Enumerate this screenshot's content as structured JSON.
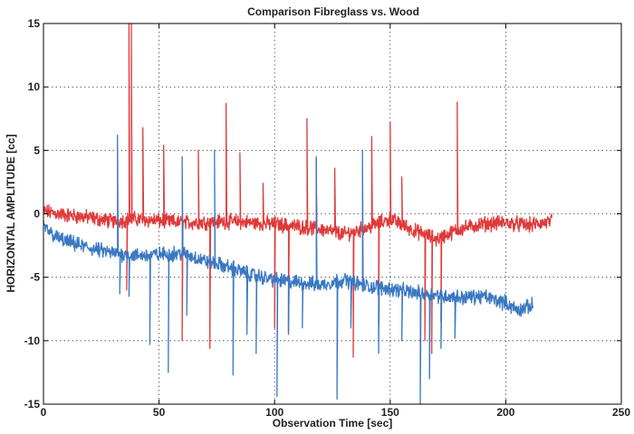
{
  "chart_data": {
    "type": "line",
    "title": "Comparison Fibreglass vs. Wood",
    "xlabel": "Observation Time [sec]",
    "ylabel": "HORIZONTAL AMPLITUDE [cc]",
    "xlim": [
      0,
      250
    ],
    "ylim": [
      -15,
      15
    ],
    "xticks": [
      0,
      50,
      100,
      150,
      200,
      250
    ],
    "yticks": [
      -15,
      -10,
      -5,
      0,
      5,
      10,
      15
    ],
    "grid": true,
    "series": [
      {
        "color": "#e03a3a",
        "baseline": [
          [
            0,
            0.2
          ],
          [
            10,
            -0.1
          ],
          [
            20,
            -0.3
          ],
          [
            30,
            -0.6
          ],
          [
            40,
            -0.4
          ],
          [
            60,
            -0.7
          ],
          [
            80,
            -0.6
          ],
          [
            100,
            -0.8
          ],
          [
            120,
            -1.2
          ],
          [
            130,
            -1.6
          ],
          [
            140,
            -1.1
          ],
          [
            150,
            -0.4
          ],
          [
            160,
            -1.3
          ],
          [
            170,
            -2.0
          ],
          [
            180,
            -1.2
          ],
          [
            190,
            -0.8
          ],
          [
            200,
            -0.7
          ],
          [
            210,
            -0.9
          ],
          [
            220,
            -0.6
          ]
        ],
        "spikes": [
          [
            37,
            15
          ],
          [
            38,
            15
          ],
          [
            36,
            -6
          ],
          [
            43,
            6.8
          ],
          [
            52,
            5.4
          ],
          [
            60,
            -10
          ],
          [
            67,
            5
          ],
          [
            72,
            -10.6
          ],
          [
            79,
            8.7
          ],
          [
            85,
            4.8
          ],
          [
            95,
            2.4
          ],
          [
            100,
            -9
          ],
          [
            106,
            -9.5
          ],
          [
            114,
            7.5
          ],
          [
            118,
            4.4
          ],
          [
            126,
            3.6
          ],
          [
            134,
            -11.3
          ],
          [
            142,
            6.1
          ],
          [
            145,
            -8.6
          ],
          [
            150,
            7.2
          ],
          [
            155,
            2.9
          ],
          [
            165,
            -10
          ],
          [
            168,
            -11
          ],
          [
            172,
            -8.5
          ],
          [
            179,
            8.8
          ]
        ]
      },
      {
        "color": "#3a78c2",
        "baseline": [
          [
            0,
            -1.0
          ],
          [
            5,
            -1.8
          ],
          [
            10,
            -2.2
          ],
          [
            20,
            -2.7
          ],
          [
            30,
            -3.1
          ],
          [
            40,
            -3.3
          ],
          [
            50,
            -3.2
          ],
          [
            60,
            -3.1
          ],
          [
            70,
            -3.7
          ],
          [
            80,
            -4.2
          ],
          [
            90,
            -4.8
          ],
          [
            100,
            -5.2
          ],
          [
            110,
            -5.4
          ],
          [
            120,
            -5.6
          ],
          [
            130,
            -5.2
          ],
          [
            140,
            -5.7
          ],
          [
            150,
            -5.9
          ],
          [
            160,
            -6.2
          ],
          [
            170,
            -6.4
          ],
          [
            180,
            -6.6
          ],
          [
            190,
            -6.5
          ],
          [
            200,
            -7.0
          ],
          [
            205,
            -7.6
          ],
          [
            212,
            -7.2
          ]
        ],
        "spikes": [
          [
            32,
            6.2
          ],
          [
            33,
            -6.3
          ],
          [
            37,
            -6.5
          ],
          [
            46,
            -10.3
          ],
          [
            54,
            -12.5
          ],
          [
            60,
            4.5
          ],
          [
            62,
            -8
          ],
          [
            74,
            5
          ],
          [
            82,
            -12.7
          ],
          [
            88,
            -9.5
          ],
          [
            92,
            -11
          ],
          [
            101,
            -14.4
          ],
          [
            106,
            -9.4
          ],
          [
            112,
            -9
          ],
          [
            118,
            4.5
          ],
          [
            127,
            -14.6
          ],
          [
            133,
            -9
          ],
          [
            138,
            5
          ],
          [
            145,
            -11
          ],
          [
            155,
            -10
          ],
          [
            163,
            -15
          ],
          [
            167,
            -13
          ],
          [
            172,
            -10.6
          ],
          [
            178,
            -9.8
          ]
        ]
      }
    ]
  }
}
